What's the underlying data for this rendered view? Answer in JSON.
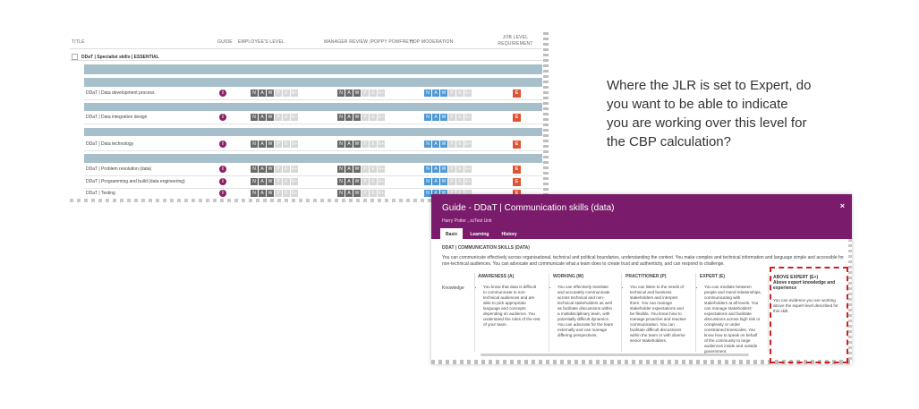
{
  "table": {
    "headers": {
      "title": "TITLE",
      "guide": "GUIDE",
      "employee_level": "EMPLOYEE'S LEVEL",
      "manager_review": "MANAGER REVIEW (POPPY POMFREY)",
      "hop_moderation": "HOP MODERATION",
      "job_level_requirement": "JOB LEVEL REQUIREMENT"
    },
    "group": "DDaT | Specialist skills | ESSENTIAL",
    "scale_labels": [
      "N",
      "A",
      "W",
      "P",
      "E",
      "E+"
    ],
    "guide_icon": "i",
    "rows": [
      {
        "title": "DDaT | Data development process",
        "jlr": "E"
      },
      {
        "title": "DDaT | Data integration design",
        "jlr": "E"
      },
      {
        "title": "DDaT | Data technology",
        "jlr": "E"
      },
      {
        "title": "DDaT | Problem resolution (data)",
        "jlr": "E"
      },
      {
        "title": "DDaT | Programming and build (data engineering)",
        "jlr": "E"
      },
      {
        "title": "DDaT | Testing",
        "jlr": "E"
      }
    ]
  },
  "question": "Where the JLR is set to Expert, do you want to be able to indicate you are working over this level for the CBP calculation?",
  "modal": {
    "title": "Guide - DDaT | Communication skills (data)",
    "subtitle": "Harry Potter , zzTest Unit",
    "close": "×",
    "tabs": [
      "Basic",
      "Learning",
      "History"
    ],
    "section": "DDAT | COMMUNICATION SKILLS (DATA)",
    "description": "You can communicate effectively across organisational, technical and political boundaries, understanding the context. You make complex and technical information and language simple and accessible for non-technical audiences. You can advocate and communicate what a team does to create trust and authenticity, and can respond to challenge.",
    "row_label": "Knowledge",
    "columns": [
      {
        "head": "AWARENESS (A)",
        "text": "You know that data is difficult to communicate to non-technical audiences and are able to pick appropriate language and concepts depending on audience. You understand the roles of the rest of your team."
      },
      {
        "head": "WORKING (W)",
        "text": "You can effectively translate and accurately communicate across technical and non-technical stakeholders as well as facilitate discussions within a multidisciplinary team, with potentially difficult dynamics. You can advocate for the team externally and can manage differing perspectives."
      },
      {
        "head": "PRACTITIONER (P)",
        "text": "You can listen to the needs of technical and business stakeholders and interpret them. You can manage stakeholder expectations and be flexible. You know how to manage proactive and reactive communication. You can facilitate difficult discussions within the team or with diverse senior stakeholders."
      },
      {
        "head": "EXPERT (E)",
        "text": "You can mediate between people and mend relationships, communicating with stakeholders at all levels. You can manage stakeholders' expectations and facilitate discussions across high risk or complexity or under constrained timescales. You know how to speak on behalf of the community to large audiences inside and outside government."
      }
    ],
    "above_expert": {
      "head": "ABOVE EXPERT (E+)",
      "subhead": "Above expert knowledge and experience",
      "text": "You can evidence you are working above the expert level described for this skill."
    }
  }
}
